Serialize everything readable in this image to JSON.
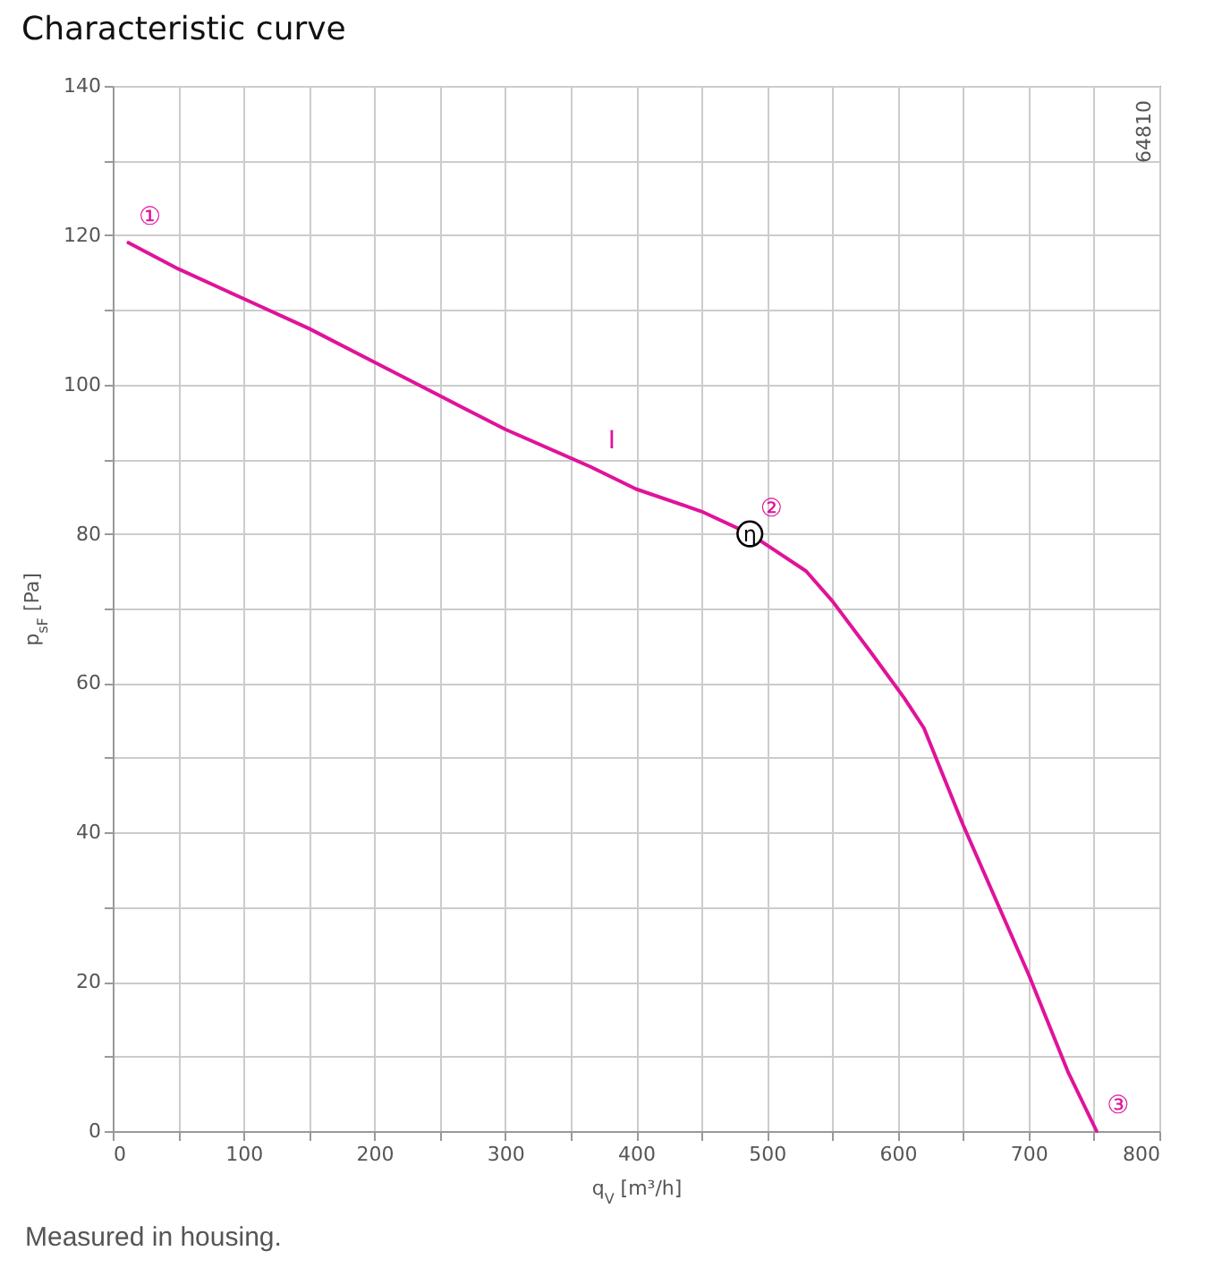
{
  "chart_data": {
    "type": "line",
    "title": "Characteristic curve",
    "xlabel": "q$_{V}$ [m³/h]",
    "ylabel": "p$_{sF}$ [Pa]",
    "series": [
      {
        "color": "#e0139a",
        "x": [
          12,
          50,
          100,
          150,
          200,
          250,
          300,
          365,
          400,
          450,
          487,
          500,
          530,
          550,
          580,
          605,
          620,
          650,
          700,
          730,
          752
        ],
        "values": [
          119,
          115.5,
          111.5,
          107.5,
          103,
          98.5,
          94,
          89,
          86,
          83,
          80,
          78.5,
          75,
          71,
          64,
          58,
          54,
          41,
          21,
          8,
          0
        ]
      }
    ],
    "xlim": [
      0,
      800
    ],
    "xticks": [
      0,
      {
        "value": 50,
        "label": null
      },
      100,
      {
        "value": 150,
        "label": null
      },
      200,
      {
        "value": 250,
        "label": null
      },
      300,
      {
        "value": 350,
        "label": null
      },
      400,
      {
        "value": 450,
        "label": null
      },
      500,
      {
        "value": 550,
        "label": null
      },
      600,
      {
        "value": 650,
        "label": null
      },
      700,
      {
        "value": 750,
        "label": null
      },
      800
    ],
    "ylim": [
      0,
      140
    ],
    "yticks": [
      0,
      {
        "value": 10,
        "label": null
      },
      20,
      {
        "value": 30,
        "label": null
      },
      40,
      {
        "value": 50,
        "label": null
      },
      60,
      {
        "value": 70,
        "label": null
      },
      80,
      {
        "value": 90,
        "label": null
      },
      100,
      {
        "value": 110,
        "label": null
      },
      120,
      {
        "value": 130,
        "label": null
      },
      140
    ],
    "grid": true,
    "marker": "none",
    "line_style": "solid",
    "annotations": [
      {
        "text": "①",
        "x": 12,
        "y": 119
      },
      {
        "text": "I",
        "x": 365,
        "y": 89
      },
      {
        "text": "②",
        "x": 487,
        "y": 80
      },
      {
        "text": "η",
        "x": 487,
        "y": 80
      },
      {
        "text": "③",
        "x": 752,
        "y": 0
      },
      "64810",
      "Measured in housing."
    ]
  }
}
